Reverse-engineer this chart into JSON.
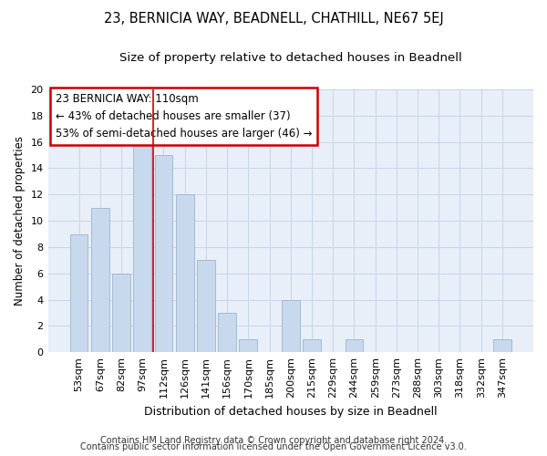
{
  "title": "23, BERNICIA WAY, BEADNELL, CHATHILL, NE67 5EJ",
  "subtitle": "Size of property relative to detached houses in Beadnell",
  "xlabel": "Distribution of detached houses by size in Beadnell",
  "ylabel": "Number of detached properties",
  "categories": [
    "53sqm",
    "67sqm",
    "82sqm",
    "97sqm",
    "112sqm",
    "126sqm",
    "141sqm",
    "156sqm",
    "170sqm",
    "185sqm",
    "200sqm",
    "215sqm",
    "229sqm",
    "244sqm",
    "259sqm",
    "273sqm",
    "288sqm",
    "303sqm",
    "318sqm",
    "332sqm",
    "347sqm"
  ],
  "values": [
    9,
    11,
    6,
    16,
    15,
    12,
    7,
    3,
    1,
    0,
    4,
    1,
    0,
    1,
    0,
    0,
    0,
    0,
    0,
    0,
    1
  ],
  "bar_color": "#c8d9ed",
  "bar_edgecolor": "#9ab5d0",
  "vline_color": "#cc0000",
  "vline_x_index": 4,
  "annotation_line1": "23 BERNICIA WAY: 110sqm",
  "annotation_line2": "← 43% of detached houses are smaller (37)",
  "annotation_line3": "53% of semi-detached houses are larger (46) →",
  "box_edgecolor": "#cc0000",
  "grid_color": "#c8d4e8",
  "background_color": "#e8eff8",
  "ylim": [
    0,
    20
  ],
  "yticks": [
    0,
    2,
    4,
    6,
    8,
    10,
    12,
    14,
    16,
    18,
    20
  ],
  "footer_line1": "Contains HM Land Registry data © Crown copyright and database right 2024.",
  "footer_line2": "Contains public sector information licensed under the Open Government Licence v3.0.",
  "title_fontsize": 10.5,
  "subtitle_fontsize": 9.5,
  "xlabel_fontsize": 9,
  "ylabel_fontsize": 8.5,
  "tick_fontsize": 8,
  "annotation_fontsize": 8.5,
  "footer_fontsize": 7
}
